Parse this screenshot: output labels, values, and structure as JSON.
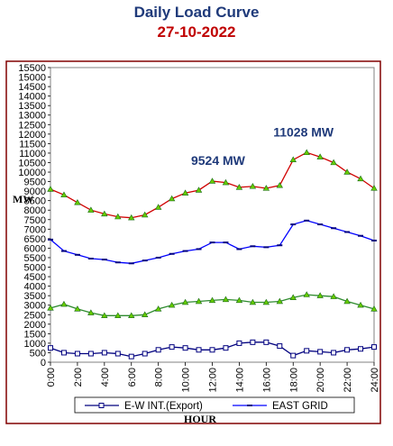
{
  "chart_data": {
    "type": "line",
    "title": "Daily Load Curve",
    "subtitle": "27-10-2022",
    "ylabel": "MW",
    "xlabel": "HOUR",
    "ylim": [
      0,
      15500
    ],
    "y_ticks": [
      0,
      500,
      1000,
      1500,
      2000,
      2500,
      3000,
      3500,
      4000,
      4500,
      5000,
      5500,
      6000,
      6500,
      7000,
      7500,
      8000,
      8500,
      9000,
      9500,
      10000,
      10500,
      11000,
      11500,
      12000,
      12500,
      13000,
      13500,
      14000,
      14500,
      15000,
      15500
    ],
    "x_tick_labels": [
      "0:00",
      "2:00",
      "4:00",
      "6:00",
      "8:00",
      "10:00",
      "12:00",
      "14:00",
      "16:00",
      "18:00",
      "20:00",
      "22:00",
      "24:00"
    ],
    "xlim": [
      0,
      24
    ],
    "annotations": [
      {
        "text": "9524 MW",
        "x": 12.7,
        "y": 9524
      },
      {
        "text": "11028 MW",
        "x": 18.8,
        "y": 11028
      }
    ],
    "legend": [
      "E-W INT.(Export)",
      "EAST GRID"
    ],
    "legend_position": "bottom",
    "colors": {
      "border": "#800000",
      "ew_export": "#00007f",
      "east_grid": "#0000ff",
      "upper": "#d00000",
      "green": "#2e8b2e",
      "marker_green": "#66cc00",
      "annotation": "#1f3a7a",
      "date": "#c00000"
    },
    "series": [
      {
        "key": "upper",
        "color": "#d00000",
        "marker": "triangle-green",
        "x": [
          0,
          1,
          2,
          3,
          4,
          5,
          6,
          7,
          8,
          9,
          10,
          11,
          12,
          13,
          14,
          15,
          16,
          17,
          18,
          19,
          20,
          21,
          22,
          23,
          24
        ],
        "values": [
          9100,
          8800,
          8400,
          8000,
          7800,
          7650,
          7600,
          7750,
          8150,
          8600,
          8900,
          9050,
          9524,
          9450,
          9200,
          9250,
          9150,
          9300,
          10650,
          11028,
          10800,
          10500,
          10000,
          9650,
          9150
        ]
      },
      {
        "key": "east_grid",
        "color": "#0000ff",
        "marker": "dash",
        "x": [
          0,
          1,
          2,
          3,
          4,
          5,
          6,
          7,
          8,
          9,
          10,
          11,
          12,
          13,
          14,
          15,
          16,
          17,
          18,
          19,
          20,
          21,
          22,
          23,
          24
        ],
        "values": [
          6450,
          5850,
          5650,
          5450,
          5400,
          5250,
          5200,
          5350,
          5500,
          5700,
          5850,
          5950,
          6300,
          6300,
          5950,
          6100,
          6050,
          6150,
          7250,
          7450,
          7250,
          7050,
          6850,
          6650,
          6400
        ]
      },
      {
        "key": "green",
        "color": "#2e8b2e",
        "marker": "triangle-green",
        "x": [
          0,
          1,
          2,
          3,
          4,
          5,
          6,
          7,
          8,
          9,
          10,
          11,
          12,
          13,
          14,
          15,
          16,
          17,
          18,
          19,
          20,
          21,
          22,
          23,
          24
        ],
        "values": [
          2850,
          3050,
          2800,
          2600,
          2450,
          2450,
          2450,
          2500,
          2800,
          3000,
          3150,
          3200,
          3250,
          3300,
          3250,
          3150,
          3150,
          3200,
          3400,
          3550,
          3500,
          3450,
          3200,
          3000,
          2800
        ]
      },
      {
        "key": "ew_export",
        "color": "#00007f",
        "marker": "square-open",
        "x": [
          0,
          1,
          2,
          3,
          4,
          5,
          6,
          7,
          8,
          9,
          10,
          11,
          12,
          13,
          14,
          15,
          16,
          17,
          18,
          19,
          20,
          21,
          22,
          23,
          24
        ],
        "values": [
          750,
          500,
          450,
          450,
          500,
          450,
          300,
          450,
          650,
          800,
          750,
          650,
          650,
          750,
          1000,
          1050,
          1050,
          850,
          350,
          600,
          550,
          500,
          650,
          700,
          800
        ]
      }
    ]
  }
}
